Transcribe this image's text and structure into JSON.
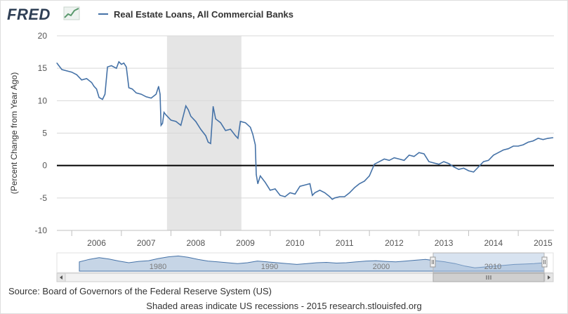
{
  "header": {
    "logo": "FRED",
    "legend_label": "Real Estate Loans, All Commercial Banks"
  },
  "footer": {
    "source": "Source: Board of Governors of the Federal Reserve System (US)",
    "footnote": "Shaded areas indicate US recessions - 2015 research.stlouisfed.org"
  },
  "colors": {
    "series": "#4572a7",
    "recession": "#e5e5e5",
    "grid": "#d8d8d8",
    "zero_line": "#000000"
  },
  "chart_data": {
    "type": "line",
    "title": "",
    "ylabel": "(Percent Change from Year Ago)",
    "xlabel": "",
    "xlim": [
      2005.7,
      2015.72
    ],
    "ylim": [
      -10,
      20
    ],
    "yticks": [
      -10,
      -5,
      0,
      5,
      10,
      15,
      20
    ],
    "xticks": [
      "2006",
      "2007",
      "2008",
      "2009",
      "2010",
      "2011",
      "2012",
      "2013",
      "2014",
      "2015"
    ],
    "grid": true,
    "legend_position": "top-left",
    "zero_line": true,
    "recession_shading": [
      [
        2007.92,
        2009.42
      ]
    ],
    "series": [
      {
        "name": "Real Estate Loans, All Commercial Banks",
        "x": [
          2005.7,
          2005.8,
          2005.9,
          2006.0,
          2006.1,
          2006.2,
          2006.3,
          2006.4,
          2006.45,
          2006.5,
          2006.55,
          2006.62,
          2006.67,
          2006.72,
          2006.8,
          2006.9,
          2006.95,
          2007.0,
          2007.05,
          2007.1,
          2007.15,
          2007.22,
          2007.3,
          2007.4,
          2007.5,
          2007.6,
          2007.7,
          2007.75,
          2007.78,
          2007.8,
          2007.83,
          2007.86,
          2007.9,
          2008.0,
          2008.1,
          2008.2,
          2008.3,
          2008.35,
          2008.4,
          2008.5,
          2008.6,
          2008.7,
          2008.75,
          2008.8,
          2008.85,
          2008.9,
          2009.0,
          2009.1,
          2009.2,
          2009.3,
          2009.35,
          2009.4,
          2009.5,
          2009.6,
          2009.65,
          2009.7,
          2009.72,
          2009.75,
          2009.8,
          2009.9,
          2010.0,
          2010.1,
          2010.2,
          2010.3,
          2010.4,
          2010.5,
          2010.6,
          2010.7,
          2010.8,
          2010.85,
          2010.9,
          2011.0,
          2011.1,
          2011.2,
          2011.25,
          2011.3,
          2011.4,
          2011.5,
          2011.6,
          2011.7,
          2011.8,
          2011.9,
          2012.0,
          2012.1,
          2012.2,
          2012.3,
          2012.4,
          2012.5,
          2012.6,
          2012.7,
          2012.8,
          2012.9,
          2013.0,
          2013.1,
          2013.2,
          2013.3,
          2013.4,
          2013.5,
          2013.6,
          2013.7,
          2013.8,
          2013.9,
          2014.0,
          2014.1,
          2014.2,
          2014.3,
          2014.4,
          2014.5,
          2014.6,
          2014.7,
          2014.8,
          2014.9,
          2015.0,
          2015.1,
          2015.2,
          2015.3,
          2015.4,
          2015.5,
          2015.6,
          2015.7
        ],
        "values": [
          15.8,
          14.8,
          14.6,
          14.4,
          14.0,
          13.2,
          13.4,
          12.8,
          12.2,
          11.8,
          10.5,
          10.2,
          11.0,
          15.2,
          15.4,
          15.0,
          16.0,
          15.6,
          15.8,
          15.2,
          12.0,
          11.8,
          11.2,
          11.0,
          10.6,
          10.4,
          11.0,
          12.2,
          11.0,
          6.2,
          6.5,
          8.2,
          7.8,
          7.0,
          6.8,
          6.2,
          9.2,
          8.6,
          7.6,
          6.8,
          5.6,
          4.6,
          3.6,
          3.4,
          9.1,
          7.2,
          6.6,
          5.4,
          5.6,
          4.6,
          4.2,
          6.8,
          6.6,
          5.9,
          4.8,
          3.2,
          -1.4,
          -2.8,
          -1.6,
          -2.6,
          -3.8,
          -3.6,
          -4.6,
          -4.8,
          -4.2,
          -4.4,
          -3.2,
          -3.0,
          -2.8,
          -4.6,
          -4.2,
          -3.8,
          -4.2,
          -4.8,
          -5.2,
          -5.0,
          -4.8,
          -4.8,
          -4.2,
          -3.4,
          -2.8,
          -2.4,
          -1.6,
          0.2,
          0.6,
          1.0,
          0.8,
          1.2,
          1.0,
          0.8,
          1.6,
          1.4,
          2.0,
          1.8,
          0.6,
          0.4,
          0.2,
          0.6,
          0.3,
          -0.2,
          -0.6,
          -0.4,
          -0.8,
          -1.0,
          -0.2,
          0.6,
          0.8,
          1.6,
          2.0,
          2.4,
          2.6,
          3.0,
          3.0,
          3.2,
          3.6,
          3.8,
          4.2,
          4.0,
          4.2,
          4.3
        ]
      }
    ],
    "navigator": {
      "labels": [
        "1980",
        "1990",
        "2000",
        "2010"
      ]
    }
  }
}
